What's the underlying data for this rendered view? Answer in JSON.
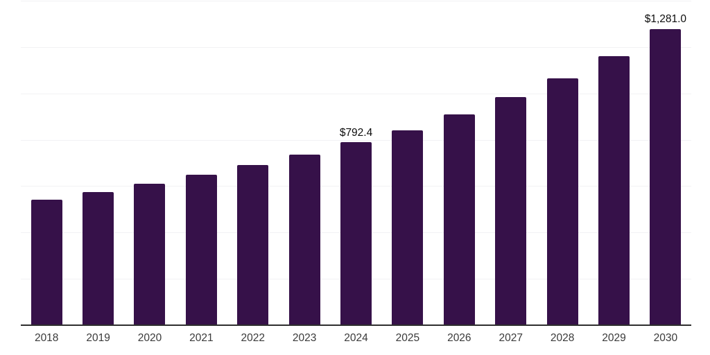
{
  "chart_data": {
    "type": "bar",
    "title": "",
    "xlabel": "",
    "ylabel": "",
    "categories": [
      "2018",
      "2019",
      "2020",
      "2021",
      "2022",
      "2023",
      "2024",
      "2025",
      "2026",
      "2027",
      "2028",
      "2029",
      "2030"
    ],
    "values": [
      544,
      577,
      612,
      651,
      694,
      738,
      792.4,
      845,
      914,
      986,
      1068,
      1165,
      1281
    ],
    "value_labels": [
      "",
      "",
      "",
      "",
      "",
      "",
      "$792.4",
      "",
      "",
      "",
      "",
      "",
      "$1,281.0"
    ],
    "ylim": [
      0,
      1400
    ],
    "grid_step": 200,
    "grid": true,
    "legend_position": "none",
    "colors": {
      "bar": "#361149",
      "grid": "#f2f2f4",
      "axis": "#2e2e2e",
      "tick_label": "#3a3a3a",
      "value_label": "#0d0d0d"
    }
  }
}
